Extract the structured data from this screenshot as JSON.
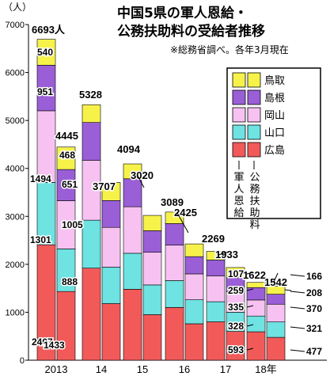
{
  "title_line1": "中国5県の軍人恩給・",
  "title_line2": "公務扶助料の受給者推移",
  "note": "※総務省調べ。各年3月現在",
  "unit": "（人）",
  "legend": {
    "items": [
      {
        "label": "鳥取",
        "color": "#f6f24a"
      },
      {
        "label": "島根",
        "color": "#9a5fd6"
      },
      {
        "label": "岡山",
        "color": "#f7c2f2"
      },
      {
        "label": "山口",
        "color": "#6fe2e2"
      },
      {
        "label": "広島",
        "color": "#f25a5a"
      }
    ],
    "col1": "軍人恩給",
    "col2": "公務扶助料"
  },
  "chart_data": {
    "type": "bar",
    "stacked": true,
    "grouped": true,
    "ylim": [
      0,
      7000
    ],
    "yticks": [
      0,
      1000,
      2000,
      3000,
      4000,
      5000,
      6000,
      7000
    ],
    "categories": [
      "2013",
      "14",
      "15",
      "16",
      "17",
      "18年"
    ],
    "segments_bottom_to_top": [
      "広島",
      "山口",
      "岡山",
      "島根",
      "鳥取"
    ],
    "colors": [
      "#f25a5a",
      "#6fe2e2",
      "#f7c2f2",
      "#9a5fd6",
      "#f6f24a"
    ],
    "series": [
      {
        "name": "軍人恩給",
        "totals": [
          6693,
          5328,
          4094,
          3089,
          2269,
          1622
        ],
        "total_labels": [
          "6693人",
          "5328",
          "4094",
          "3089",
          "2269",
          "1622"
        ],
        "segments": [
          [
            2407,
            1301,
            1494,
            951,
            540
          ],
          [
            1920,
            1000,
            1250,
            788,
            370
          ],
          [
            1480,
            750,
            970,
            584,
            310
          ],
          [
            1100,
            560,
            740,
            449,
            240
          ],
          [
            800,
            420,
            540,
            329,
            180
          ],
          [
            593,
            328,
            335,
            259,
            107
          ]
        ],
        "segment_labels": [
          [
            "2407",
            "1301",
            "1494",
            "951",
            "540"
          ],
          null,
          null,
          null,
          null,
          [
            "593",
            "328",
            "335",
            "259",
            "107"
          ]
        ]
      },
      {
        "name": "公務扶助料",
        "totals": [
          4445,
          3707,
          3020,
          2425,
          1933,
          1542
        ],
        "total_labels": [
          "4445",
          "3707",
          "3020",
          "2425",
          "1933",
          "1542"
        ],
        "segments": [
          [
            1433,
            888,
            1005,
            651,
            468
          ],
          [
            1180,
            760,
            830,
            560,
            377
          ],
          [
            950,
            620,
            680,
            450,
            320
          ],
          [
            760,
            500,
            540,
            360,
            265
          ],
          [
            600,
            400,
            430,
            290,
            213
          ],
          [
            477,
            321,
            370,
            208,
            166
          ]
        ],
        "segment_labels": [
          [
            "1433",
            "888",
            "1005",
            "651",
            "468"
          ],
          null,
          null,
          null,
          null,
          [
            "477",
            "321",
            "370",
            "208",
            "166"
          ]
        ]
      }
    ]
  }
}
